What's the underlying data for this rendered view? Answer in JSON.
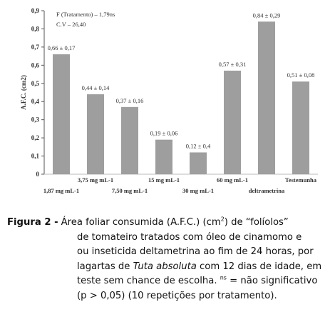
{
  "chart_data": {
    "type": "bar",
    "ylabel": "A.F.C. (cm2)",
    "ylim": [
      0,
      0.9
    ],
    "yticks": [
      "0",
      "0,1",
      "0,2",
      "0,3",
      "0,4",
      "0,5",
      "0,6",
      "0,7",
      "0,8",
      "0,9"
    ],
    "categories": [
      "1,87 mg mL-1",
      "3,75 mg mL-1",
      "7,50 mg mL-1",
      "15 mg mL-1",
      "30 mg mL-1",
      "60 mg mL-1",
      "deltrametrina",
      "Testemunha"
    ],
    "values": [
      0.66,
      0.44,
      0.37,
      0.19,
      0.12,
      0.57,
      0.84,
      0.51
    ],
    "data_labels": [
      "0,66 ± 0,17",
      "0,44 ± 0,14",
      "0,37 ± 0,16",
      "0,19 ± 0,06",
      "0,12 ± 0,4",
      "0,57 ± 0,31",
      "0,84 ± 0,29",
      "0,51 ± 0,08"
    ],
    "annotations": [
      "F (Tratamento) – 1,79ns",
      "C.V – 26,40"
    ],
    "grid": false,
    "bar_color": "#9e9e9e"
  },
  "caption": {
    "label": "Figura 2 -",
    "lines": [
      "Área foliar consumida (A.F.C.) (cm",
      "de tomateiro tratados com  óleo de cinamomo  e",
      "ou inseticida deltametrina ao fim de 24 horas, por",
      "lagartas de ",
      "teste sem chance de escolha. ",
      "(p > 0,05) (10 repetições por tratamento)."
    ],
    "sup_2": "2",
    "line1_tail": ") de “folíolos”",
    "italic_species": "Tuta absoluta",
    "line4_tail": " com 12 dias de idade, em",
    "sup_ns": "ns",
    "line5_tail": " = não significativo"
  }
}
